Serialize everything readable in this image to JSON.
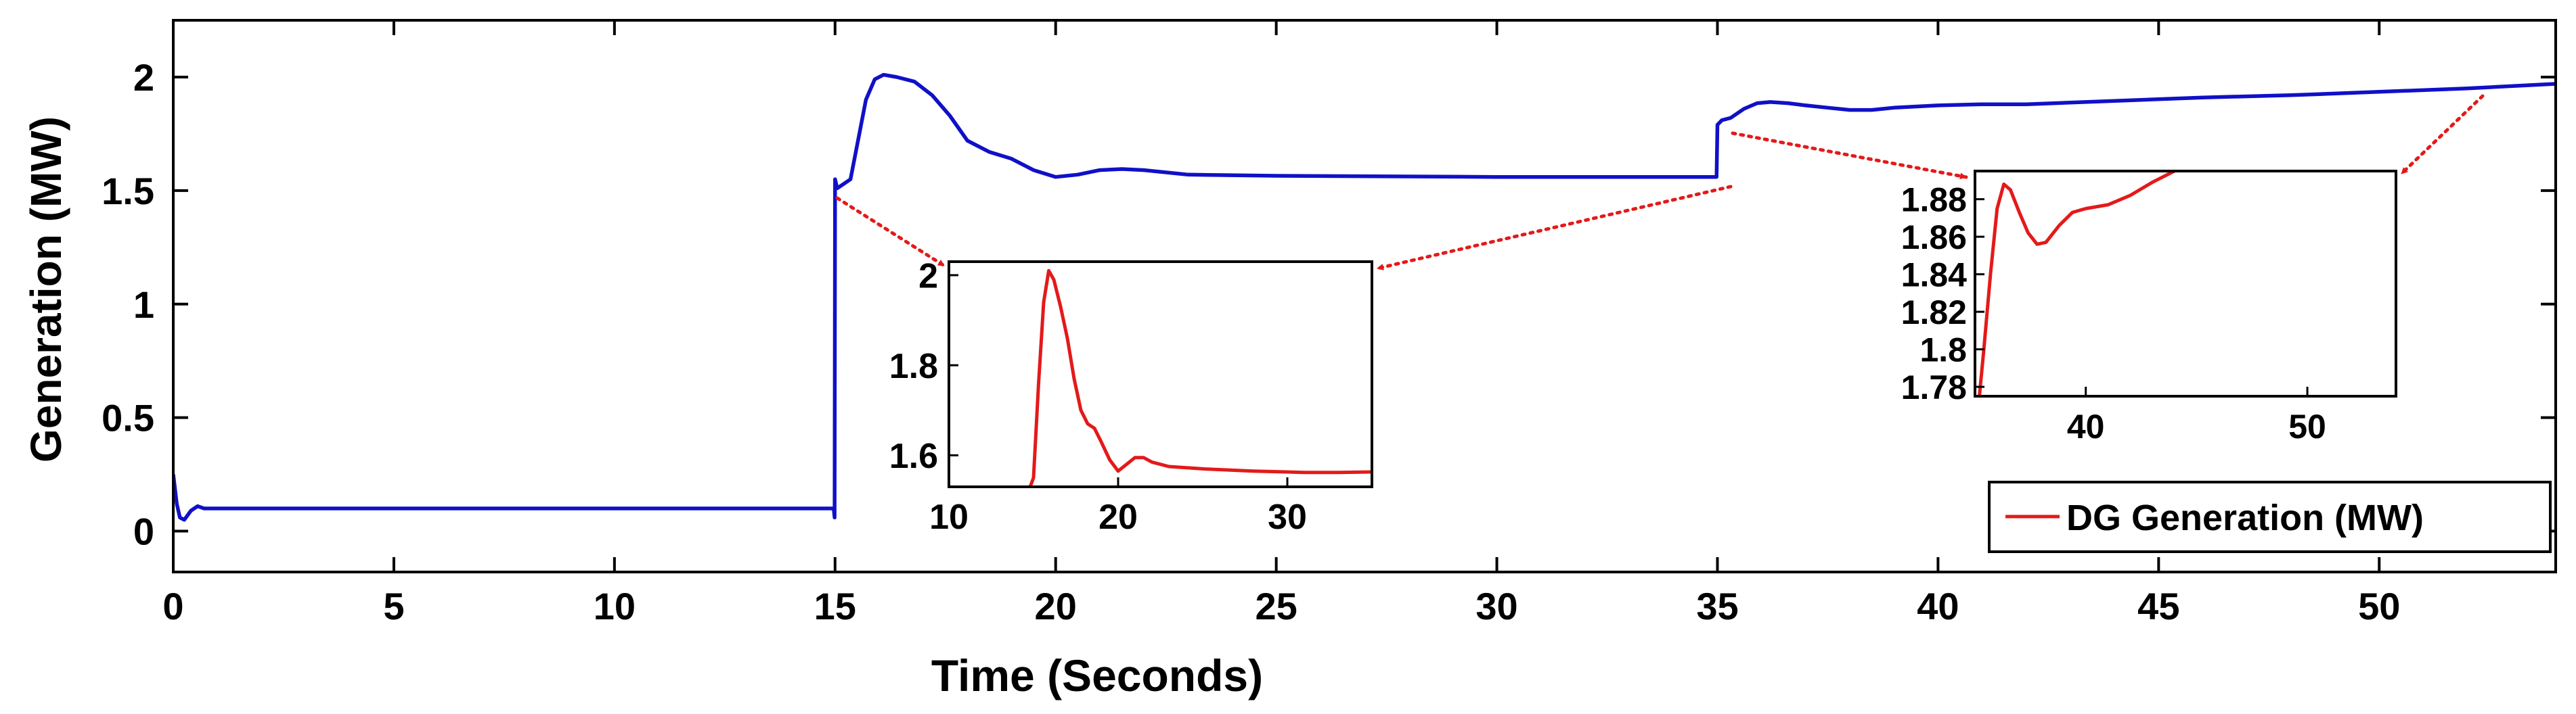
{
  "chart_data": {
    "type": "line",
    "main": {
      "xlabel": "Time (Seconds)",
      "ylabel": "Generation (MW)",
      "xlim": [
        0,
        54
      ],
      "ylim": [
        -0.18,
        2.25
      ],
      "xticks": [
        0,
        5,
        10,
        15,
        20,
        25,
        30,
        35,
        40,
        45,
        50
      ],
      "yticks": [
        0,
        0.5,
        1,
        1.5,
        2
      ],
      "xtick_labels": [
        "0",
        "5",
        "10",
        "15",
        "20",
        "25",
        "30",
        "35",
        "40",
        "45",
        "50"
      ],
      "ytick_labels": [
        "0",
        "0.5",
        "1",
        "1.5",
        "2"
      ],
      "series": [
        {
          "name": "Generation",
          "color": "#1010c8",
          "points": [
            [
              0.0,
              0.25
            ],
            [
              0.08,
              0.12
            ],
            [
              0.15,
              0.06
            ],
            [
              0.25,
              0.05
            ],
            [
              0.4,
              0.09
            ],
            [
              0.55,
              0.11
            ],
            [
              0.7,
              0.1
            ],
            [
              1.0,
              0.1
            ],
            [
              5.0,
              0.1
            ],
            [
              10.0,
              0.1
            ],
            [
              14.97,
              0.1
            ],
            [
              14.99,
              0.06
            ],
            [
              15.0,
              1.55
            ],
            [
              15.05,
              1.51
            ],
            [
              15.2,
              1.53
            ],
            [
              15.35,
              1.55
            ],
            [
              15.5,
              1.7
            ],
            [
              15.7,
              1.9
            ],
            [
              15.9,
              1.99
            ],
            [
              16.1,
              2.01
            ],
            [
              16.4,
              2.0
            ],
            [
              16.8,
              1.98
            ],
            [
              17.2,
              1.92
            ],
            [
              17.6,
              1.83
            ],
            [
              18.0,
              1.72
            ],
            [
              18.5,
              1.67
            ],
            [
              19.0,
              1.64
            ],
            [
              19.5,
              1.59
            ],
            [
              20.0,
              1.56
            ],
            [
              20.5,
              1.57
            ],
            [
              21.0,
              1.59
            ],
            [
              21.5,
              1.595
            ],
            [
              22.0,
              1.59
            ],
            [
              23.0,
              1.57
            ],
            [
              25.0,
              1.565
            ],
            [
              30.0,
              1.56
            ],
            [
              34.98,
              1.56
            ],
            [
              35.0,
              1.79
            ],
            [
              35.1,
              1.81
            ],
            [
              35.3,
              1.82
            ],
            [
              35.6,
              1.86
            ],
            [
              35.9,
              1.885
            ],
            [
              36.2,
              1.89
            ],
            [
              36.6,
              1.885
            ],
            [
              37.0,
              1.875
            ],
            [
              37.5,
              1.865
            ],
            [
              38.0,
              1.855
            ],
            [
              38.5,
              1.855
            ],
            [
              39.0,
              1.865
            ],
            [
              40.0,
              1.875
            ],
            [
              41.0,
              1.88
            ],
            [
              42.0,
              1.88
            ],
            [
              44.0,
              1.895
            ],
            [
              46.0,
              1.91
            ],
            [
              48.0,
              1.92
            ],
            [
              50.0,
              1.935
            ],
            [
              52.0,
              1.95
            ],
            [
              54.0,
              1.97
            ]
          ]
        }
      ]
    },
    "insets": [
      {
        "id": "inset-1",
        "xlim": [
          10,
          35
        ],
        "ylim": [
          1.53,
          2.03
        ],
        "xticks": [
          10,
          20,
          30
        ],
        "yticks": [
          1.6,
          1.8,
          2
        ],
        "xtick_labels": [
          "10",
          "20",
          "30"
        ],
        "ytick_labels": [
          "1.6",
          "1.8",
          "2"
        ],
        "color": "#e31a1a",
        "points": [
          [
            14.8,
            1.53
          ],
          [
            15.0,
            1.55
          ],
          [
            15.3,
            1.76
          ],
          [
            15.6,
            1.94
          ],
          [
            15.9,
            2.01
          ],
          [
            16.2,
            1.99
          ],
          [
            16.6,
            1.93
          ],
          [
            17.0,
            1.86
          ],
          [
            17.4,
            1.77
          ],
          [
            17.8,
            1.7
          ],
          [
            18.2,
            1.67
          ],
          [
            18.6,
            1.66
          ],
          [
            19.0,
            1.63
          ],
          [
            19.5,
            1.59
          ],
          [
            20.0,
            1.565
          ],
          [
            20.5,
            1.58
          ],
          [
            21.0,
            1.595
          ],
          [
            21.5,
            1.595
          ],
          [
            22.0,
            1.585
          ],
          [
            23.0,
            1.575
          ],
          [
            25.0,
            1.57
          ],
          [
            28.0,
            1.565
          ],
          [
            31.0,
            1.562
          ],
          [
            33.0,
            1.562
          ],
          [
            35.0,
            1.563
          ]
        ]
      },
      {
        "id": "inset-2",
        "xlim": [
          35,
          54
        ],
        "ylim": [
          1.775,
          1.895
        ],
        "xticks": [
          40,
          50
        ],
        "yticks": [
          1.78,
          1.8,
          1.82,
          1.84,
          1.86,
          1.88
        ],
        "xtick_labels": [
          "40",
          "50"
        ],
        "ytick_labels": [
          "1.78",
          "1.8",
          "1.82",
          "1.84",
          "1.86",
          "1.88"
        ],
        "color": "#e31a1a",
        "points": [
          [
            35.2,
            1.775
          ],
          [
            35.4,
            1.8
          ],
          [
            35.7,
            1.84
          ],
          [
            36.0,
            1.875
          ],
          [
            36.3,
            1.888
          ],
          [
            36.6,
            1.885
          ],
          [
            37.0,
            1.873
          ],
          [
            37.4,
            1.862
          ],
          [
            37.8,
            1.856
          ],
          [
            38.2,
            1.857
          ],
          [
            38.8,
            1.866
          ],
          [
            39.4,
            1.873
          ],
          [
            40.0,
            1.875
          ],
          [
            41.0,
            1.877
          ],
          [
            42.0,
            1.882
          ],
          [
            43.0,
            1.889
          ],
          [
            44.0,
            1.895
          ]
        ]
      }
    ],
    "legend": {
      "label": "DG Generation (MW)",
      "color": "#e31a1a",
      "placement": "bottom-right"
    },
    "annotations": "dotted red arrows link segments of the main curve to the zoomed insets"
  }
}
